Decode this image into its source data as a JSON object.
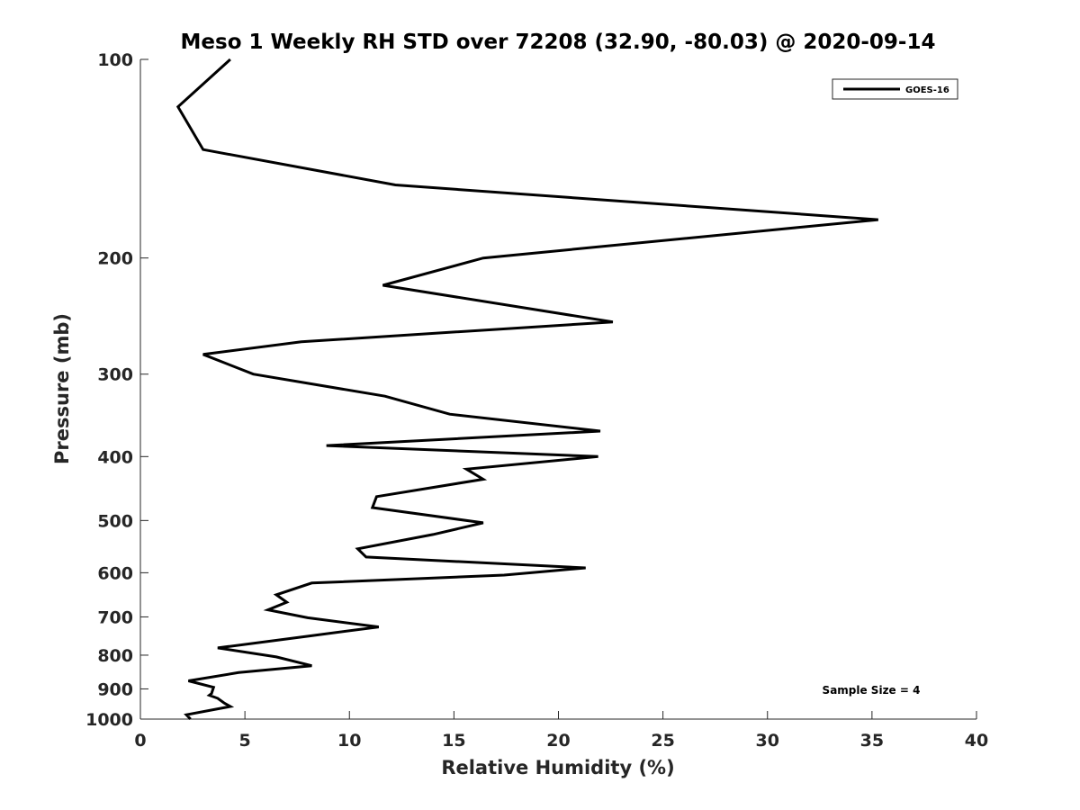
{
  "chart_data": {
    "type": "line",
    "title": "Meso 1 Weekly RH STD over 72208 (32.90, -80.03) @ 2020-09-14",
    "xlabel": "Relative Humidity (%)",
    "ylabel": "Pressure (mb)",
    "xlim": [
      0,
      40
    ],
    "ylim": [
      100,
      1000
    ],
    "y_scale": "log",
    "y_reversed": true,
    "x_ticks": [
      0,
      5,
      10,
      15,
      20,
      25,
      30,
      35,
      40
    ],
    "y_ticks": [
      100,
      200,
      300,
      400,
      500,
      600,
      700,
      800,
      900,
      1000
    ],
    "x_tick_labels": [
      "0",
      "5",
      "10",
      "15",
      "20",
      "25",
      "30",
      "35",
      "40"
    ],
    "y_tick_labels": [
      "100",
      "200",
      "300",
      "400",
      "500",
      "600",
      "700",
      "800",
      "900",
      "1000"
    ],
    "grid": false,
    "legend_position": "top-right",
    "series": [
      {
        "name": "GOES-16",
        "color": "#000000",
        "points": [
          [
            4.3,
            100
          ],
          [
            1.8,
            118
          ],
          [
            3.0,
            137
          ],
          [
            12.2,
            155
          ],
          [
            35.3,
            175
          ],
          [
            16.4,
            200
          ],
          [
            11.6,
            220
          ],
          [
            22.6,
            250
          ],
          [
            7.7,
            268
          ],
          [
            3.0,
            280
          ],
          [
            5.4,
            300
          ],
          [
            11.7,
            324
          ],
          [
            14.8,
            345
          ],
          [
            22.0,
            366
          ],
          [
            8.9,
            385
          ],
          [
            21.9,
            400
          ],
          [
            15.6,
            418
          ],
          [
            16.4,
            433
          ],
          [
            11.3,
            460
          ],
          [
            11.1,
            478
          ],
          [
            16.4,
            504
          ],
          [
            14.0,
            525
          ],
          [
            10.4,
            552
          ],
          [
            10.8,
            568
          ],
          [
            21.3,
            590
          ],
          [
            17.4,
            605
          ],
          [
            8.2,
            622
          ],
          [
            6.5,
            648
          ],
          [
            7.0,
            665
          ],
          [
            6.1,
            683
          ],
          [
            8.0,
            702
          ],
          [
            11.4,
            725
          ],
          [
            8.1,
            748
          ],
          [
            3.7,
            780
          ],
          [
            6.5,
            805
          ],
          [
            8.2,
            830
          ],
          [
            4.7,
            850
          ],
          [
            2.3,
            875
          ],
          [
            3.5,
            895
          ],
          [
            3.4,
            915
          ],
          [
            3.3,
            920
          ],
          [
            3.7,
            930
          ],
          [
            4.0,
            945
          ],
          [
            4.3,
            957
          ],
          [
            2.2,
            985
          ],
          [
            2.4,
            1000
          ]
        ]
      }
    ],
    "annotations": [
      {
        "text": "Sample Size = 4",
        "position": "bottom-right"
      }
    ]
  }
}
